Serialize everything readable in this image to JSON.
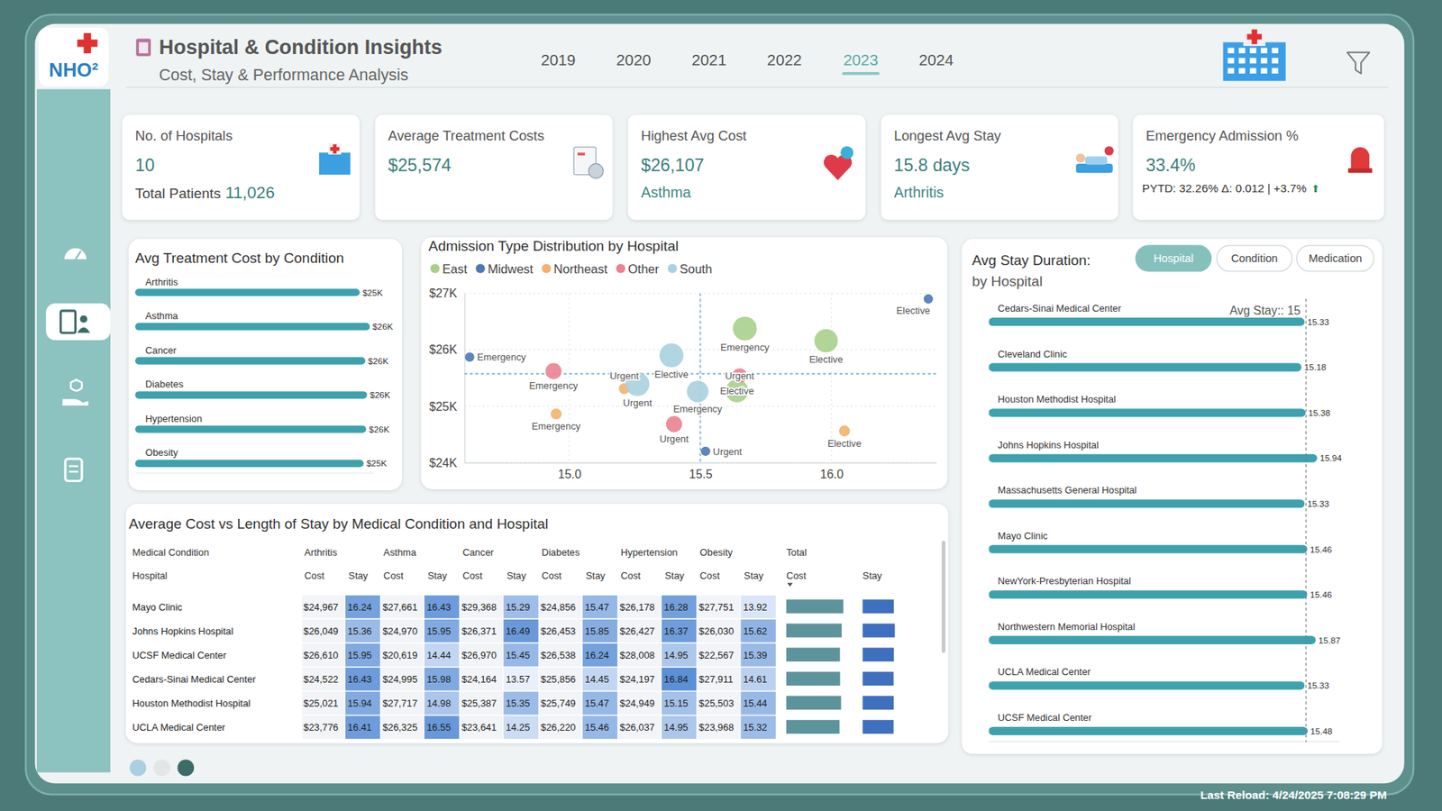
{
  "header": {
    "logo": "NHO²",
    "title": "Hospital & Condition Insights",
    "subtitle": "Cost, Stay & Performance Analysis",
    "years": [
      "2019",
      "2020",
      "2021",
      "2022",
      "2023",
      "2024"
    ],
    "selected_year": "2023"
  },
  "kpis": [
    {
      "label": "No. of Hospitals",
      "value": "10",
      "sub_label": "Total Patients",
      "sub_value": "11,026"
    },
    {
      "label": "Average Treatment Costs",
      "value": "$25,574"
    },
    {
      "label": "Highest Avg Cost",
      "value": "$26,107",
      "sub_value": "Asthma"
    },
    {
      "label": "Longest Avg Stay",
      "value": "15.8 days",
      "sub_value": "Arthritis"
    },
    {
      "label": "Emergency Admission %",
      "value": "33.4%",
      "note": "PYTD: 32.26% Δ: 0.012 | +3.7%",
      "trend": "⬆"
    }
  ],
  "chart_data": [
    {
      "type": "bar",
      "title": "Avg Treatment Cost by Condition",
      "orientation": "horizontal",
      "categories": [
        "Arthritis",
        "Asthma",
        "Cancer",
        "Diabetes",
        "Hypertension",
        "Obesity"
      ],
      "values": [
        24980,
        26107,
        25600,
        25800,
        25700,
        25420
      ],
      "value_labels": [
        "$25K",
        "$26K",
        "$26K",
        "$26K",
        "$26K",
        "$25K"
      ],
      "color": "#3ea2ae",
      "xlim": [
        0,
        26500
      ],
      "tick_labels": false,
      "data_labels": true
    },
    {
      "type": "scatter",
      "title": "Admission Type Distribution by Hospital",
      "legend": "top",
      "grid": true,
      "xlim": [
        14.6,
        16.4
      ],
      "ylim": [
        24000,
        27000
      ],
      "xticks": [
        {
          "value": 15,
          "label": "15.0"
        },
        15.5,
        {
          "value": 16,
          "label": "16.0"
        }
      ],
      "yticks": [
        {
          "value": 24000,
          "label": "$24K"
        },
        {
          "value": 25000,
          "label": "$25K"
        },
        {
          "value": 26000,
          "label": "$26K"
        },
        {
          "value": 27000,
          "label": "$27K"
        }
      ],
      "average_x": 15.5,
      "average_y": 25574,
      "series": [
        {
          "name": "East",
          "color": "#a9cf8c",
          "x": [
            15.67,
            15.64,
            15.98
          ],
          "values": [
            26375,
            25270,
            26160
          ],
          "sizes": [
            1100,
            1000,
            1050
          ],
          "labels": [
            "Emergency",
            "Elective",
            "Elective"
          ]
        },
        {
          "name": "Midwest",
          "color": "#4f78b5",
          "x": [
            14.62,
            16.37,
            15.52
          ],
          "values": [
            25870,
            26900,
            24200
          ],
          "sizes": [
            170,
            170,
            170
          ],
          "labels": [
            "Emergency",
            "Elective",
            "Urgent"
          ]
        },
        {
          "name": "Northeast",
          "color": "#f2b26b",
          "x": [
            14.95,
            15.21,
            16.05
          ],
          "values": [
            24860,
            25310,
            24560
          ],
          "sizes": [
            230,
            230,
            230
          ],
          "labels": [
            "Emergency",
            "Urgent",
            "Elective"
          ]
        },
        {
          "name": "Other",
          "color": "#ea8390",
          "x": [
            14.94,
            15.4,
            15.65
          ],
          "values": [
            25620,
            24680,
            25540
          ],
          "sizes": [
            500,
            500,
            420
          ],
          "labels": [
            "Emergency",
            "Urgent",
            "Urgent"
          ]
        },
        {
          "name": "South",
          "color": "#a9d2df",
          "x": [
            15.26,
            15.39,
            15.49
          ],
          "values": [
            25390,
            25900,
            25260
          ],
          "sizes": [
            1100,
            1100,
            900
          ],
          "labels": [
            "Urgent",
            "Elective",
            "Emergency"
          ]
        }
      ]
    },
    {
      "type": "bar",
      "title": "Avg Stay Duration:",
      "subtitle": "by Hospital",
      "orientation": "horizontal",
      "categories": [
        "Cedars-Sinai Medical Center",
        "Cleveland Clinic",
        "Houston Methodist Hospital",
        "Johns Hopkins Hospital",
        "Massachusetts General Hospital",
        "Mayo Clinic",
        "NewYork-Presbyterian Hospital",
        "Northwestern Memorial Hospital",
        "UCLA Medical Center",
        "UCSF Medical Center"
      ],
      "values": [
        15.33,
        15.18,
        15.38,
        15.94,
        15.33,
        15.46,
        15.46,
        15.87,
        15.33,
        15.48
      ],
      "color": "#3ea2ae",
      "xlim": [
        0,
        17
      ],
      "tick_labels": false,
      "data_labels": true,
      "average": 15.4,
      "average_label": "Avg Stay:: 15"
    }
  ],
  "stay_tabs": {
    "options": [
      "Hospital",
      "Condition",
      "Medication"
    ],
    "selected": "Hospital"
  },
  "table": {
    "title": "Average Cost vs Length of Stay by Medical Condition and Hospital",
    "column_group_header": "Medical Condition",
    "row_header": "Hospital",
    "conditions": [
      "Arthritis",
      "Asthma",
      "Cancer",
      "Diabetes",
      "Hypertension",
      "Obesity"
    ],
    "total_header": "Total",
    "cost_header": "Cost",
    "stay_header": "Stay",
    "rows": [
      {
        "hospital": "Mayo Clinic",
        "costs": [
          "$24,967",
          "$27,661",
          "$29,368",
          "$24,856",
          "$26,178",
          "$27,751"
        ],
        "stays": [
          16.24,
          16.43,
          15.29,
          15.47,
          16.28,
          13.92
        ],
        "total_cost": 26797,
        "total_stay": 15.46
      },
      {
        "hospital": "Johns Hopkins Hospital",
        "costs": [
          "$26,049",
          "$24,970",
          "$26,371",
          "$26,453",
          "$26,427",
          "$26,030"
        ],
        "stays": [
          15.36,
          15.95,
          16.49,
          15.85,
          16.37,
          15.62
        ],
        "total_cost": 26050,
        "total_stay": 15.94
      },
      {
        "hospital": "UCSF Medical Center",
        "costs": [
          "$26,610",
          "$20,619",
          "$26,970",
          "$26,538",
          "$28,008",
          "$22,567"
        ],
        "stays": [
          15.95,
          14.44,
          15.45,
          16.24,
          14.95,
          15.39
        ],
        "total_cost": 25219,
        "total_stay": 15.48
      },
      {
        "hospital": "Cedars-Sinai Medical Center",
        "costs": [
          "$24,522",
          "$24,995",
          "$24,164",
          "$25,856",
          "$24,197",
          "$27,911"
        ],
        "stays": [
          16.43,
          15.98,
          13.57,
          14.45,
          16.84,
          14.61
        ],
        "total_cost": 25274,
        "total_stay": 15.33
      },
      {
        "hospital": "Houston Methodist Hospital",
        "costs": [
          "$25,021",
          "$27,717",
          "$25,387",
          "$25,749",
          "$24,949",
          "$25,503"
        ],
        "stays": [
          15.94,
          14.98,
          15.35,
          15.47,
          15.15,
          15.44
        ],
        "total_cost": 25721,
        "total_stay": 15.38
      },
      {
        "hospital": "UCLA Medical Center",
        "costs": [
          "$23,776",
          "$26,325",
          "$23,641",
          "$26,220",
          "$26,037",
          "$23,968"
        ],
        "stays": [
          16.41,
          16.55,
          14.25,
          15.46,
          14.95,
          15.32
        ],
        "total_cost": 24995,
        "total_stay": 15.33
      }
    ],
    "total_cost_lim": [
      0,
      26797
    ],
    "total_stay_lim": [
      0,
      15.94
    ]
  },
  "footer": "Last Reload: 4/24/2025 7:08:29 PM"
}
